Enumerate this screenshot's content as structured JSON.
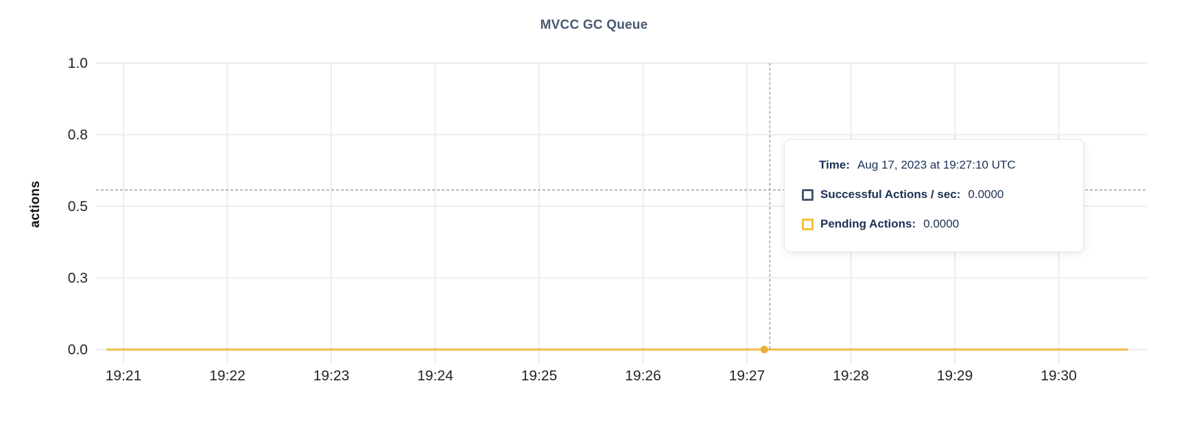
{
  "chart_data": {
    "type": "line",
    "title": "MVCC GC Queue",
    "xlabel": "",
    "ylabel": "actions",
    "ylim": [
      0,
      1.0
    ],
    "grid": true,
    "legend_position": "hover-tooltip",
    "x_ticks": [
      "19:21",
      "19:22",
      "19:23",
      "19:24",
      "19:25",
      "19:26",
      "19:27",
      "19:28",
      "19:29",
      "19:30"
    ],
    "y_ticks": [
      {
        "label": "0.0",
        "value": 0
      },
      {
        "label": "0.3",
        "value": 0.25
      },
      {
        "label": "0.5",
        "value": 0.5
      },
      {
        "label": "0.8",
        "value": 0.75
      },
      {
        "label": "1.0",
        "value": 1.0
      }
    ],
    "series": [
      {
        "name": "Successful Actions / sec",
        "color": "#475872",
        "constant_value": 0
      },
      {
        "name": "Pending Actions",
        "color": "#eebb44",
        "constant_value": 0
      }
    ],
    "hover_point": {
      "time": "19:27:10",
      "value": 0
    }
  },
  "colors": {
    "title": "#475872",
    "axis_text": "#242424",
    "gridline": "#ececee",
    "crosshair": "#98a2b5",
    "series_navy": "#475872",
    "series_yellow": "#eebb44",
    "hover_dot": "#e9ad38",
    "tooltip_text": "#1b3055"
  },
  "crosshair": {
    "vertical_x_ticks_offset": 6.22,
    "horizontal_y_value": 0.557,
    "point_x_ticks_offset": 6.1667,
    "point_y_value": 0
  },
  "tooltip": {
    "time_label": "Time:",
    "time_value": "Aug 17, 2023 at 19:27:10 UTC",
    "rows": [
      {
        "label": "Successful Actions / sec:",
        "value": "0.0000",
        "color": "#475872"
      },
      {
        "label": "Pending Actions:",
        "value": "0.0000",
        "color": "#f2c137"
      }
    ]
  }
}
